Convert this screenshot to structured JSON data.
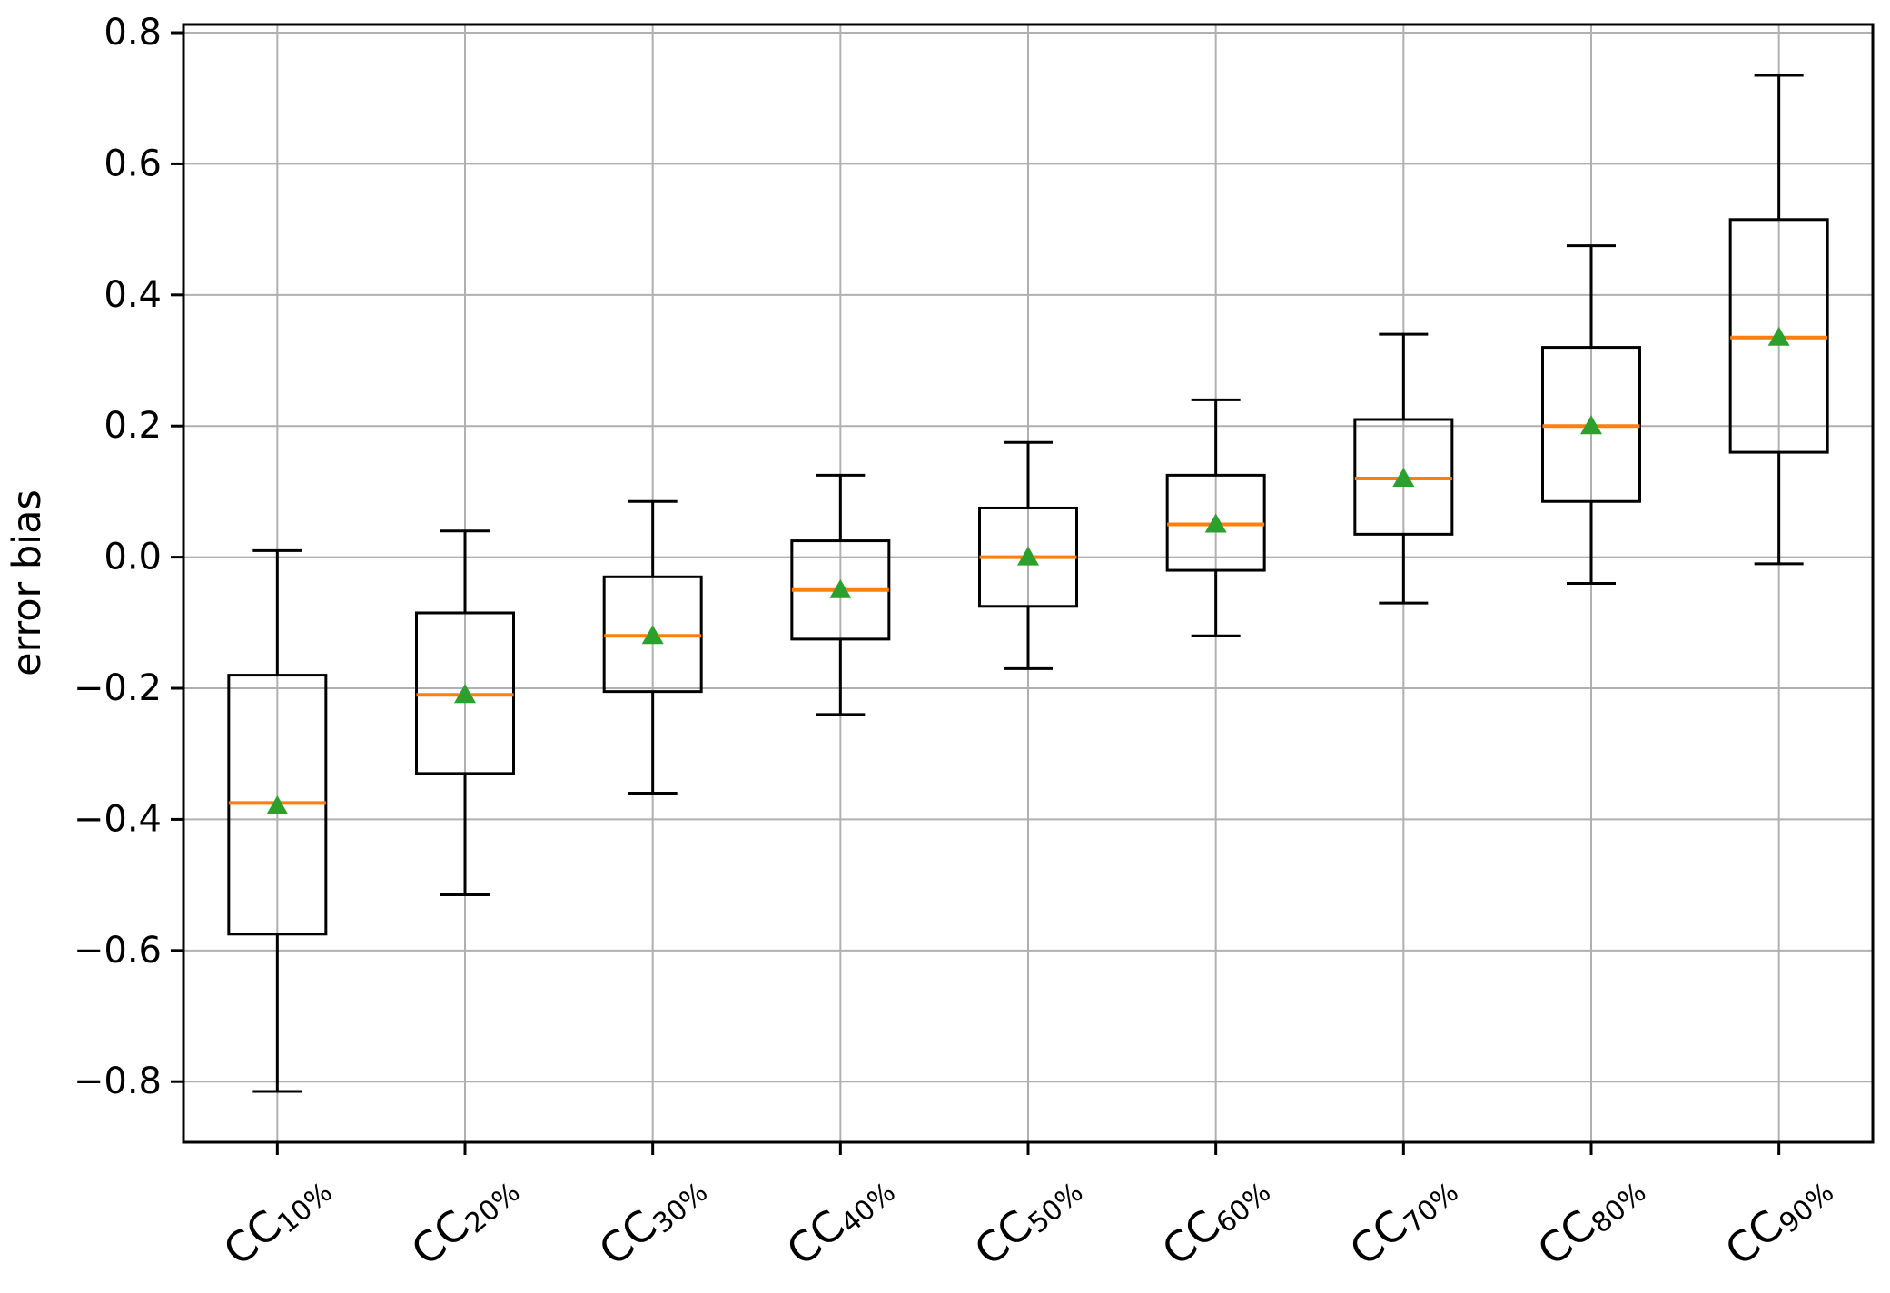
{
  "chart_data": {
    "type": "boxplot",
    "title": "",
    "xlabel": "",
    "ylabel": "error bias",
    "ylim": [
      -0.8925,
      0.8125
    ],
    "grid": "both",
    "legend": "none",
    "colors": {
      "box_edge": "#000000",
      "whisker": "#000000",
      "median": "#ff7f0e",
      "mean_marker": "#2ca02c",
      "grid": "#b0b0b0",
      "background": "#ffffff"
    },
    "yticks": [
      {
        "value": 0.8,
        "label": "0.8"
      },
      {
        "value": 0.6,
        "label": "0.6"
      },
      {
        "value": 0.4,
        "label": "0.4"
      },
      {
        "value": 0.2,
        "label": "0.2"
      },
      {
        "value": 0.0,
        "label": "0.0"
      },
      {
        "value": -0.2,
        "label": "−0.2"
      },
      {
        "value": -0.4,
        "label": "−0.4"
      },
      {
        "value": -0.6,
        "label": "−0.6"
      },
      {
        "value": -0.8,
        "label": "−0.8"
      }
    ],
    "categories": [
      {
        "prefix": "CC",
        "sub": "10%"
      },
      {
        "prefix": "CC",
        "sub": "20%"
      },
      {
        "prefix": "CC",
        "sub": "30%"
      },
      {
        "prefix": "CC",
        "sub": "40%"
      },
      {
        "prefix": "CC",
        "sub": "50%"
      },
      {
        "prefix": "CC",
        "sub": "60%"
      },
      {
        "prefix": "CC",
        "sub": "70%"
      },
      {
        "prefix": "CC",
        "sub": "80%"
      },
      {
        "prefix": "CC",
        "sub": "90%"
      }
    ],
    "boxes": [
      {
        "label": "CC10%",
        "whislo": -0.815,
        "q1": -0.575,
        "med": -0.375,
        "q3": -0.18,
        "whishi": 0.01,
        "mean": -0.38
      },
      {
        "label": "CC20%",
        "whislo": -0.515,
        "q1": -0.33,
        "med": -0.21,
        "q3": -0.085,
        "whishi": 0.04,
        "mean": -0.21
      },
      {
        "label": "CC30%",
        "whislo": -0.36,
        "q1": -0.205,
        "med": -0.12,
        "q3": -0.03,
        "whishi": 0.085,
        "mean": -0.12
      },
      {
        "label": "CC40%",
        "whislo": -0.24,
        "q1": -0.125,
        "med": -0.05,
        "q3": 0.025,
        "whishi": 0.125,
        "mean": -0.05
      },
      {
        "label": "CC50%",
        "whislo": -0.17,
        "q1": -0.075,
        "med": 0.0,
        "q3": 0.075,
        "whishi": 0.175,
        "mean": 0.0
      },
      {
        "label": "CC60%",
        "whislo": -0.12,
        "q1": -0.02,
        "med": 0.05,
        "q3": 0.125,
        "whishi": 0.24,
        "mean": 0.05
      },
      {
        "label": "CC70%",
        "whislo": -0.07,
        "q1": 0.035,
        "med": 0.12,
        "q3": 0.21,
        "whishi": 0.34,
        "mean": 0.12
      },
      {
        "label": "CC80%",
        "whislo": -0.04,
        "q1": 0.085,
        "med": 0.2,
        "q3": 0.32,
        "whishi": 0.475,
        "mean": 0.2
      },
      {
        "label": "CC90%",
        "whislo": -0.01,
        "q1": 0.16,
        "med": 0.335,
        "q3": 0.515,
        "whishi": 0.735,
        "mean": 0.335
      }
    ]
  }
}
